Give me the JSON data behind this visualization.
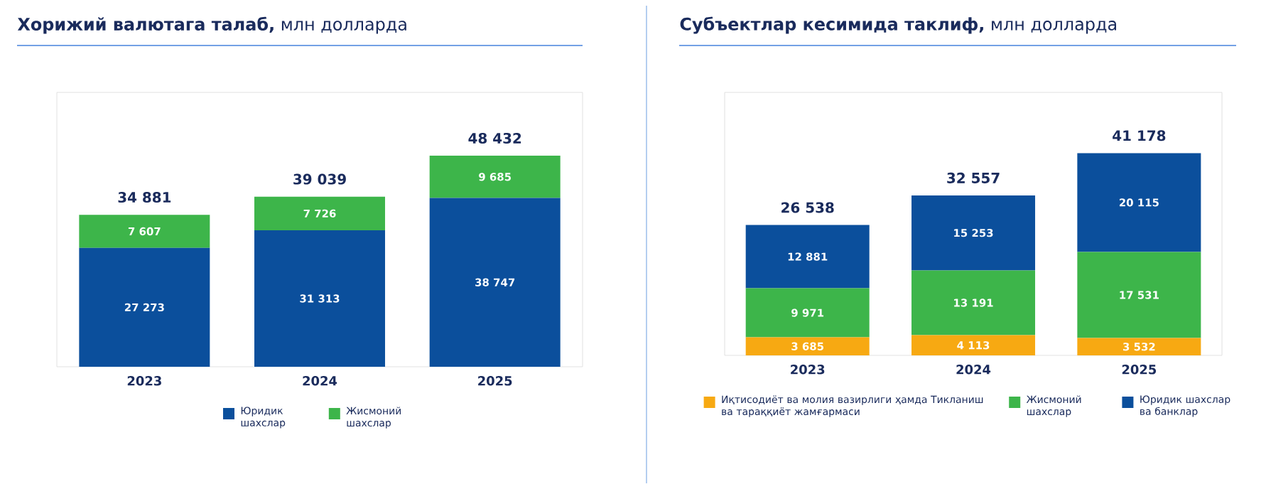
{
  "chart_data": [
    {
      "type": "bar",
      "stacked": true,
      "title": "**Хорижий валютага талаб,** млн долларда",
      "categories": [
        "2023",
        "2024",
        "2025"
      ],
      "legend": "bottom",
      "series": [
        {
          "name": "Юридик шахслар",
          "color": "#0b4f9c",
          "values": [
            27273,
            31313,
            38747
          ],
          "value_labels": [
            "27 273",
            "31 313",
            "38 747"
          ]
        },
        {
          "name": "Жисмоний шахслар",
          "color": "#3db54a",
          "values": [
            7607,
            7726,
            9685
          ],
          "value_labels": [
            "7 607",
            "7 726",
            "9 685"
          ]
        }
      ],
      "totals": [
        "34 881",
        "39 039",
        "48 432"
      ]
    },
    {
      "type": "bar",
      "stacked": true,
      "title": "**Субъектлар кесимида таклиф,** млн долларда",
      "categories": [
        "2023",
        "2024",
        "2025"
      ],
      "legend": "bottom",
      "series": [
        {
          "name": "Иқтисодиёт ва молия вазирлиги ҳамда Тикланиш ва тараққиёт жамғармаси",
          "color": "#f7a912",
          "values": [
            3685,
            4113,
            3532
          ],
          "value_labels": [
            "3 685",
            "4 113",
            "3 532"
          ]
        },
        {
          "name": "Жисмоний шахслар",
          "color": "#3db54a",
          "values": [
            9971,
            13191,
            17531
          ],
          "value_labels": [
            "9 971",
            "13 191",
            "17 531"
          ]
        },
        {
          "name": "Юридик шахслар ва банклар",
          "color": "#0b4f9c",
          "values": [
            12881,
            15253,
            20115
          ],
          "value_labels": [
            "12 881",
            "15 253",
            "20 115"
          ]
        }
      ],
      "totals": [
        "26 538",
        "32 557",
        "41 178"
      ]
    }
  ]
}
